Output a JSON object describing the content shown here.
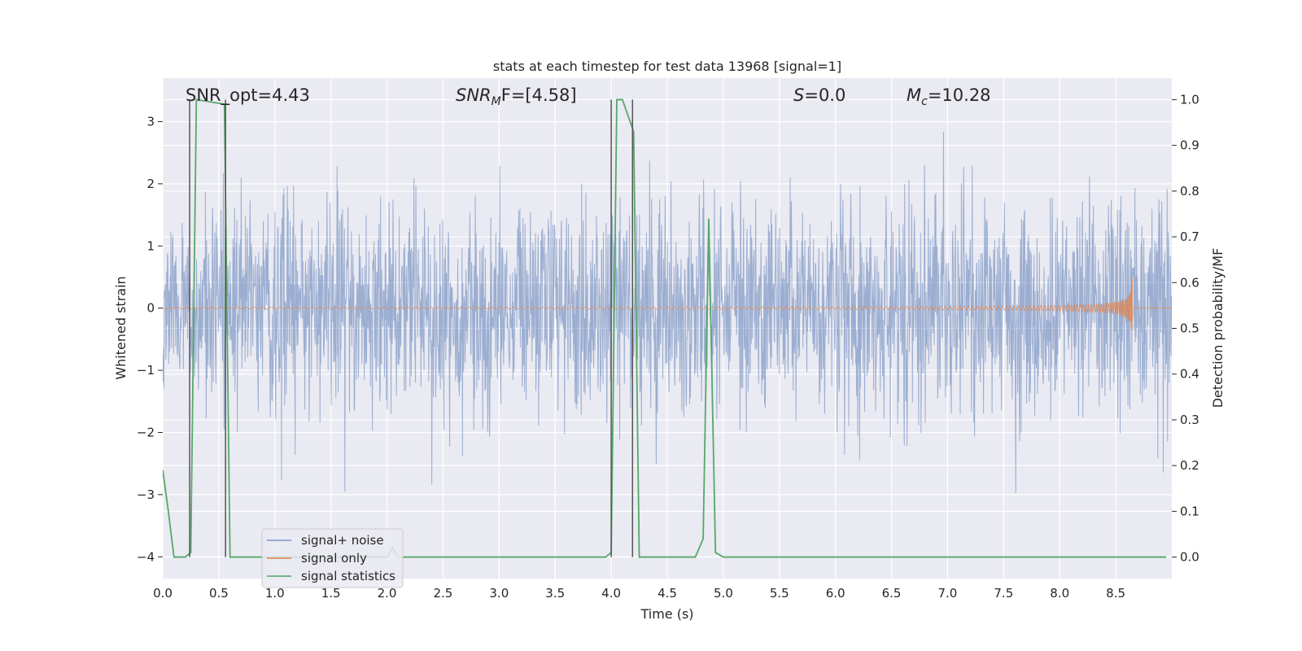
{
  "chart_data": {
    "type": "line",
    "title": "stats at each timestep for test data 13968 [signal=1]",
    "xlabel": "Time (s)",
    "ylabel": "Whitened strain",
    "y2label": "Detection probability/MF",
    "xlim": [
      0.0,
      9.0
    ],
    "ylim": [
      -4.35,
      3.7
    ],
    "y2lim": [
      -0.047,
      1.047
    ],
    "xticks": [
      "0.0",
      "0.5",
      "1.0",
      "1.5",
      "2.0",
      "2.5",
      "3.0",
      "3.5",
      "4.0",
      "4.5",
      "5.0",
      "5.5",
      "6.0",
      "6.5",
      "7.0",
      "7.5",
      "8.0",
      "8.5"
    ],
    "yticks": [
      "−4",
      "−3",
      "−2",
      "−1",
      "0",
      "1",
      "2",
      "3"
    ],
    "y2ticks": [
      "0.0",
      "0.1",
      "0.2",
      "0.3",
      "0.4",
      "0.5",
      "0.6",
      "0.7",
      "0.8",
      "0.9",
      "1.0"
    ],
    "grid": true,
    "legend_position": "lower-left",
    "annotations": [
      {
        "label": "SNR_opt=4.43",
        "kind": "plain"
      },
      {
        "label": "SNR",
        "sub": "M",
        "suffix": "F=[4.58]",
        "kind": "italic-sub"
      },
      {
        "label": "S",
        "suffix": "=0.0",
        "kind": "italic"
      },
      {
        "label": "M",
        "sub": "c",
        "suffix": "=10.28",
        "kind": "italic-sub"
      }
    ],
    "series": [
      {
        "name": "signal+ noise",
        "color": "#4c72b0",
        "axis": "left",
        "style": "noise",
        "amplitude_sd": 0.85,
        "x_range": [
          0.0,
          9.0
        ]
      },
      {
        "name": "signal only",
        "color": "#dd8452",
        "axis": "left",
        "style": "chirp",
        "merger_time": 8.65,
        "peak_amplitude": 0.72
      },
      {
        "name": "signal statistics",
        "color": "#55a868",
        "axis": "right",
        "x": [
          0.0,
          0.05,
          0.1,
          0.2,
          0.25,
          0.3,
          0.55,
          0.6,
          0.65,
          1.0,
          2.0,
          2.05,
          2.1,
          3.0,
          3.95,
          4.0,
          4.05,
          4.1,
          4.2,
          4.25,
          4.5,
          4.75,
          4.82,
          4.87,
          4.93,
          5.0,
          5.5,
          6.35,
          7.45,
          8.0,
          8.95
        ],
        "values": [
          0.19,
          0.1,
          0.0,
          0.0,
          0.01,
          1.0,
          0.99,
          0.0,
          0.0,
          0.0,
          0.0,
          0.02,
          0.0,
          0.0,
          0.0,
          0.01,
          1.0,
          1.0,
          0.93,
          0.0,
          0.0,
          0.0,
          0.04,
          0.74,
          0.01,
          0.0,
          0.0,
          0.0,
          0.0,
          0.0,
          0.0
        ]
      },
      {
        "name": "",
        "color": "#555555",
        "axis": "right",
        "style": "vlines",
        "x": [
          0.24,
          0.56,
          4.0,
          4.19
        ]
      }
    ]
  }
}
